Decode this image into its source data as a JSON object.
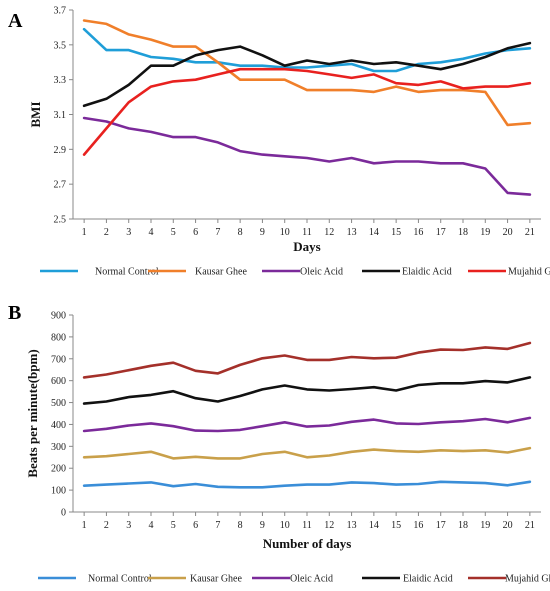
{
  "chart_data": [
    {
      "type": "line",
      "panel_label": "A",
      "title": "",
      "xlabel": "Days",
      "ylabel": "BMI",
      "ylim": [
        2.5,
        3.7
      ],
      "yticks": [
        "2.5",
        "2.7",
        "2.9",
        "3.1",
        "3.3",
        "3.5",
        "3.7"
      ],
      "x": [
        "1",
        "2",
        "3",
        "4",
        "5",
        "6",
        "7",
        "8",
        "9",
        "10",
        "11",
        "12",
        "13",
        "14",
        "15",
        "16",
        "17",
        "18",
        "19",
        "20",
        "21"
      ],
      "grid": false,
      "legend_position": "bottom",
      "series": [
        {
          "name": "Normal Control",
          "color": "#1f9ed8",
          "values": [
            3.59,
            3.47,
            3.47,
            3.43,
            3.42,
            3.4,
            3.4,
            3.38,
            3.38,
            3.37,
            3.37,
            3.38,
            3.39,
            3.35,
            3.35,
            3.39,
            3.4,
            3.42,
            3.45,
            3.47,
            3.48
          ]
        },
        {
          "name": "Kausar Ghee",
          "color": "#f07f2a",
          "values": [
            3.64,
            3.62,
            3.56,
            3.53,
            3.49,
            3.49,
            3.4,
            3.3,
            3.3,
            3.3,
            3.24,
            3.24,
            3.24,
            3.23,
            3.26,
            3.23,
            3.24,
            3.24,
            3.23,
            3.04,
            3.05
          ]
        },
        {
          "name": "Oleic Acid",
          "color": "#7b2a9a",
          "values": [
            3.08,
            3.06,
            3.02,
            3.0,
            2.97,
            2.97,
            2.94,
            2.89,
            2.87,
            2.86,
            2.85,
            2.83,
            2.85,
            2.82,
            2.83,
            2.83,
            2.82,
            2.82,
            2.79,
            2.65,
            2.64
          ]
        },
        {
          "name": "Elaidic Acid",
          "color": "#111111",
          "values": [
            3.15,
            3.19,
            3.27,
            3.38,
            3.38,
            3.44,
            3.47,
            3.49,
            3.44,
            3.38,
            3.41,
            3.39,
            3.41,
            3.39,
            3.4,
            3.38,
            3.36,
            3.39,
            3.43,
            3.48,
            3.51
          ]
        },
        {
          "name": "Mujahid Ghee",
          "color": "#e8211f",
          "values": [
            2.87,
            3.02,
            3.17,
            3.26,
            3.29,
            3.3,
            3.33,
            3.36,
            3.36,
            3.36,
            3.35,
            3.33,
            3.31,
            3.33,
            3.28,
            3.27,
            3.29,
            3.25,
            3.26,
            3.26,
            3.28
          ]
        }
      ]
    },
    {
      "type": "line",
      "panel_label": "B",
      "title": "",
      "xlabel": "Number of days",
      "ylabel": "Beats per minute(bpm)",
      "ylim": [
        0,
        900
      ],
      "yticks": [
        "0",
        "100",
        "200",
        "300",
        "400",
        "500",
        "600",
        "700",
        "800",
        "900"
      ],
      "x": [
        "1",
        "2",
        "3",
        "4",
        "5",
        "6",
        "7",
        "8",
        "9",
        "10",
        "11",
        "12",
        "13",
        "14",
        "15",
        "16",
        "17",
        "18",
        "19",
        "20",
        "21"
      ],
      "grid": false,
      "legend_position": "bottom",
      "series": [
        {
          "name": "Normal Control",
          "color": "#3a8ed8",
          "values": [
            120,
            125,
            130,
            135,
            118,
            128,
            115,
            113,
            113,
            120,
            125,
            125,
            135,
            132,
            125,
            128,
            138,
            135,
            132,
            122,
            138
          ]
        },
        {
          "name": "Kausar Ghee",
          "color": "#c9a04a",
          "values": [
            250,
            255,
            265,
            275,
            245,
            252,
            245,
            245,
            265,
            275,
            250,
            258,
            275,
            285,
            278,
            275,
            282,
            278,
            282,
            272,
            292
          ]
        },
        {
          "name": "Oleic Acid",
          "color": "#7b2a9a",
          "values": [
            370,
            380,
            395,
            405,
            392,
            372,
            370,
            375,
            392,
            410,
            390,
            395,
            412,
            422,
            405,
            402,
            410,
            415,
            425,
            410,
            430
          ]
        },
        {
          "name": "Elaidic Acid",
          "color": "#111111",
          "values": [
            495,
            505,
            525,
            535,
            552,
            520,
            505,
            530,
            560,
            578,
            560,
            555,
            562,
            570,
            555,
            580,
            588,
            588,
            598,
            592,
            615
          ]
        },
        {
          "name": "Mujahid Ghee",
          "color": "#a4302a",
          "values": [
            615,
            628,
            648,
            668,
            682,
            645,
            633,
            672,
            702,
            715,
            695,
            695,
            708,
            702,
            705,
            728,
            742,
            740,
            752,
            745,
            772
          ]
        }
      ]
    }
  ]
}
